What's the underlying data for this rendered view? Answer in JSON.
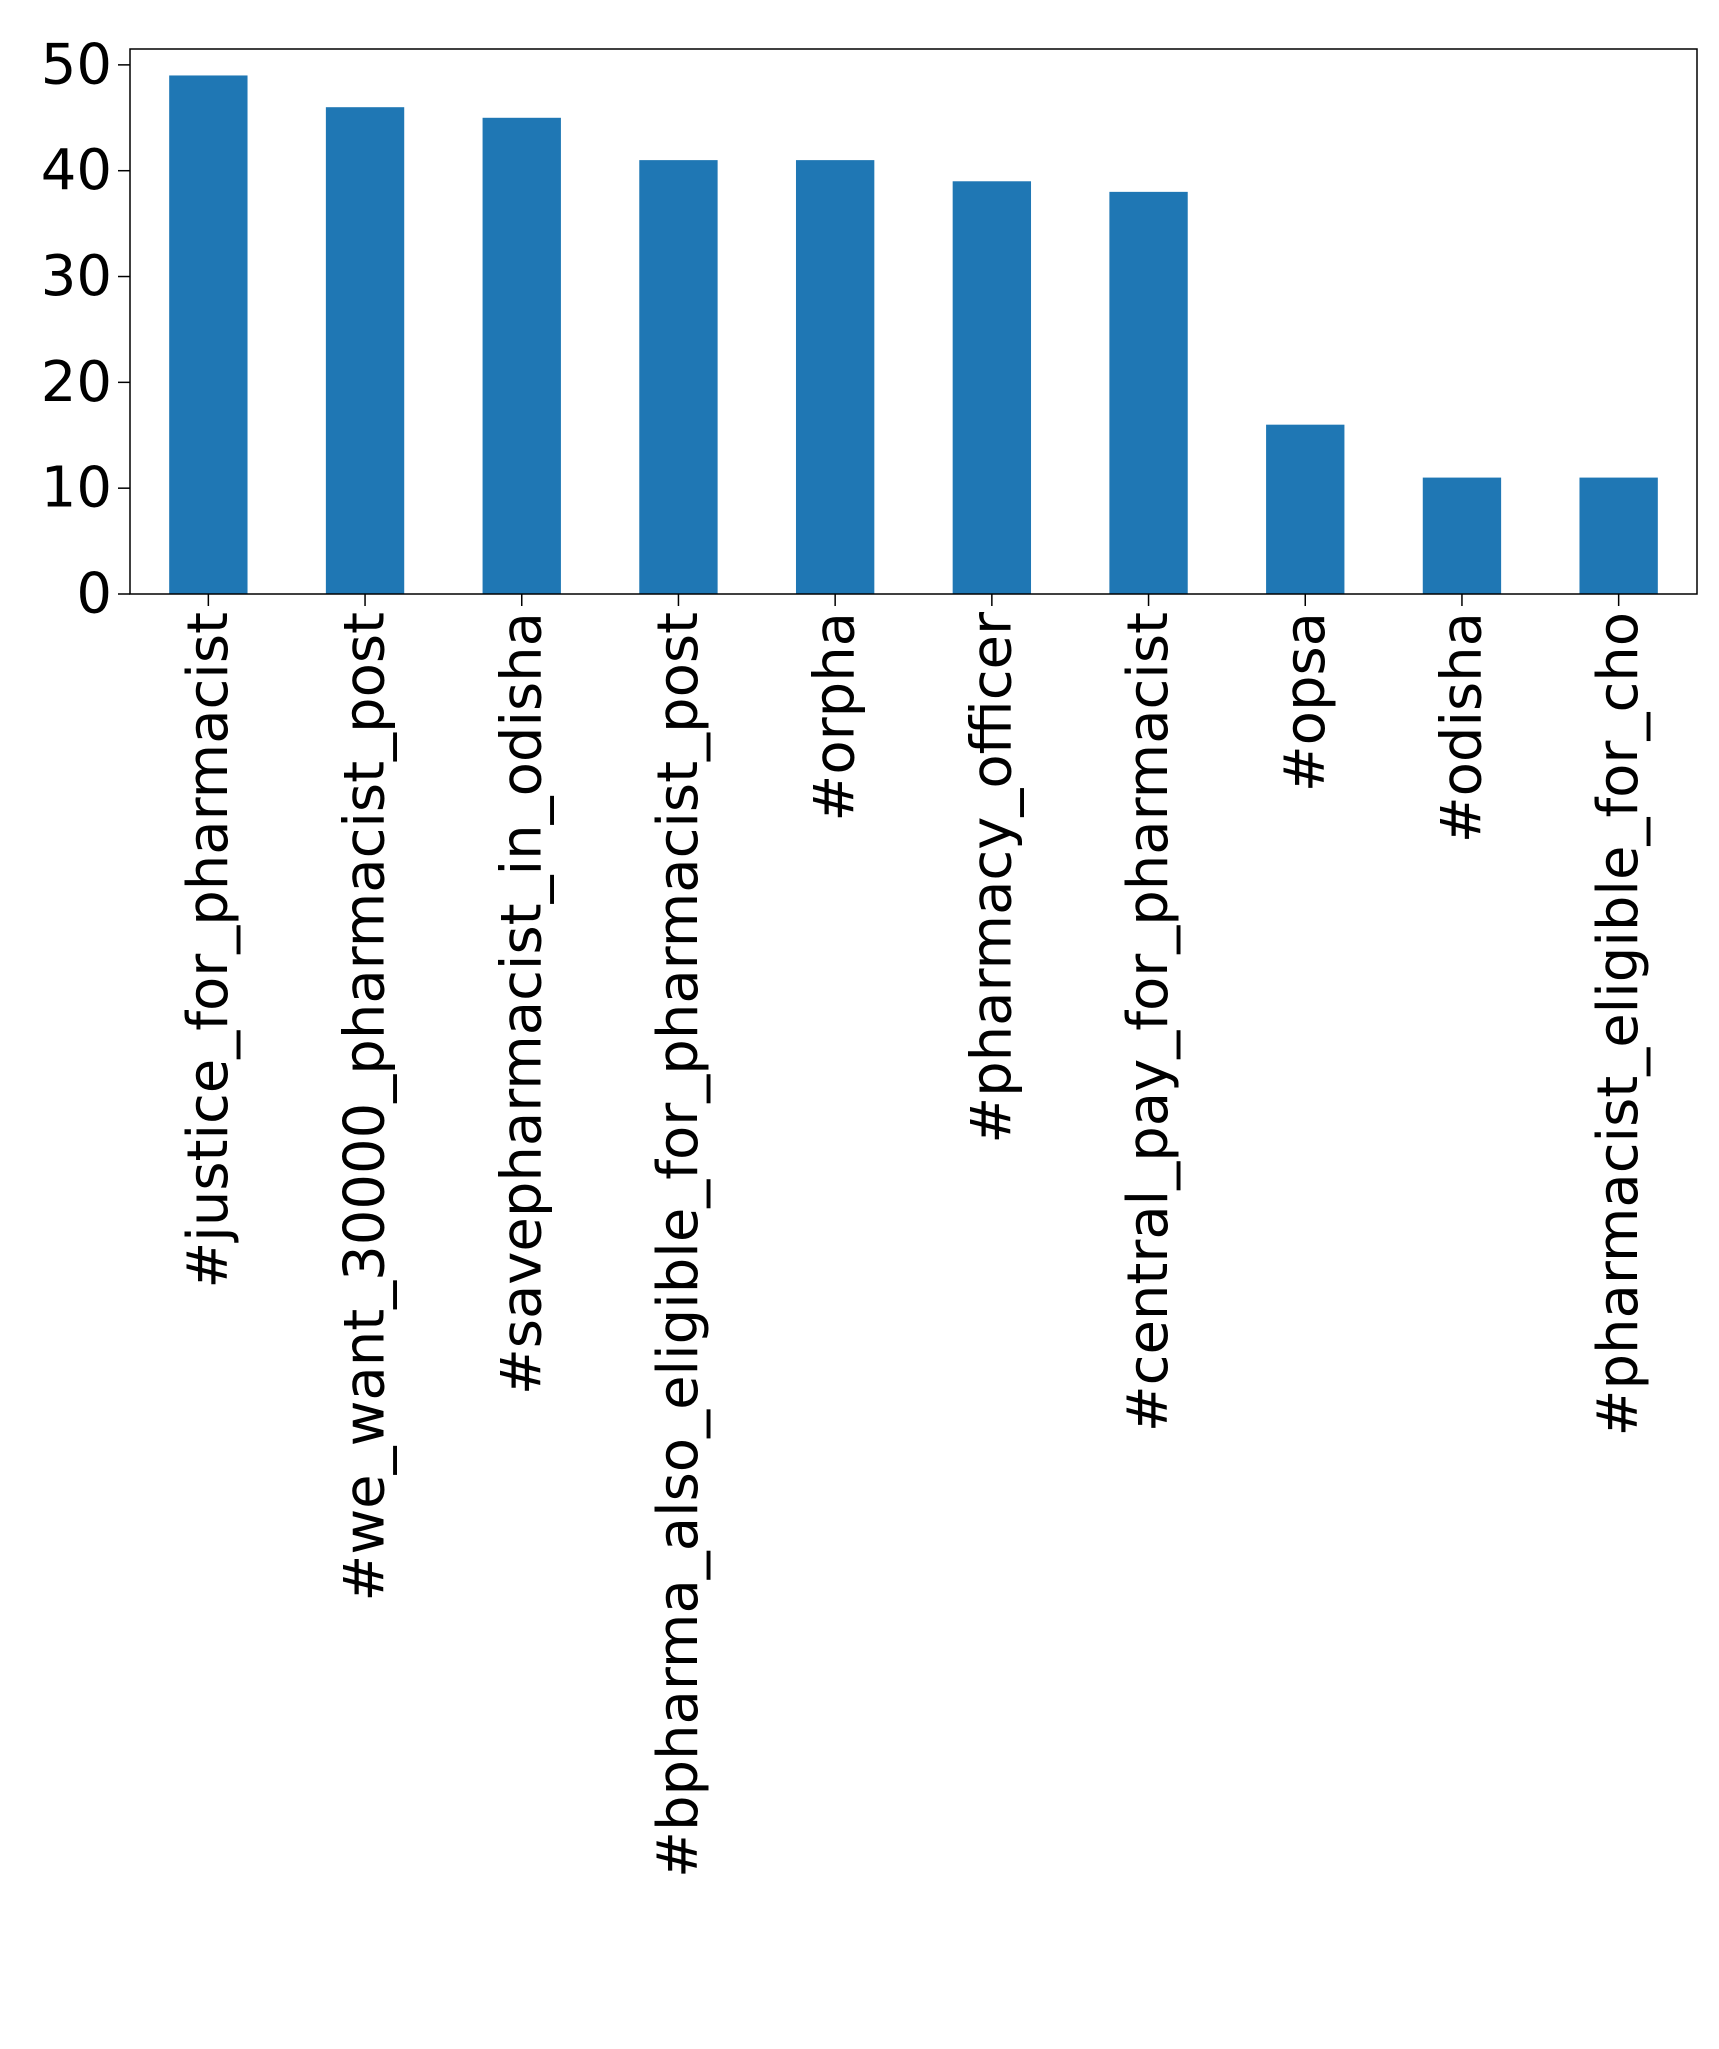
{
  "chart_data": {
    "type": "bar",
    "categories": [
      "#justice_for_pharmacist",
      "#we_want_30000_pharmacist_post",
      "#savepharmacist_in_odisha",
      "#bpharma_also_eligible_for_pharmacist_post",
      "#orpha",
      "#pharmacy_officer",
      "#central_pay_for_pharmacist",
      "#opsa",
      "#odisha",
      "#pharmacist_eligible_for_cho"
    ],
    "values": [
      49,
      46,
      45,
      41,
      41,
      39,
      38,
      16,
      11,
      11
    ],
    "title": "",
    "xlabel": "",
    "ylabel": "",
    "ylim": [
      0,
      51.5
    ],
    "yticks": [
      0,
      10,
      20,
      30,
      40,
      50
    ],
    "grid": false,
    "legend": "none",
    "bar_color": "#1f77b4",
    "axis_color": "#000000"
  }
}
